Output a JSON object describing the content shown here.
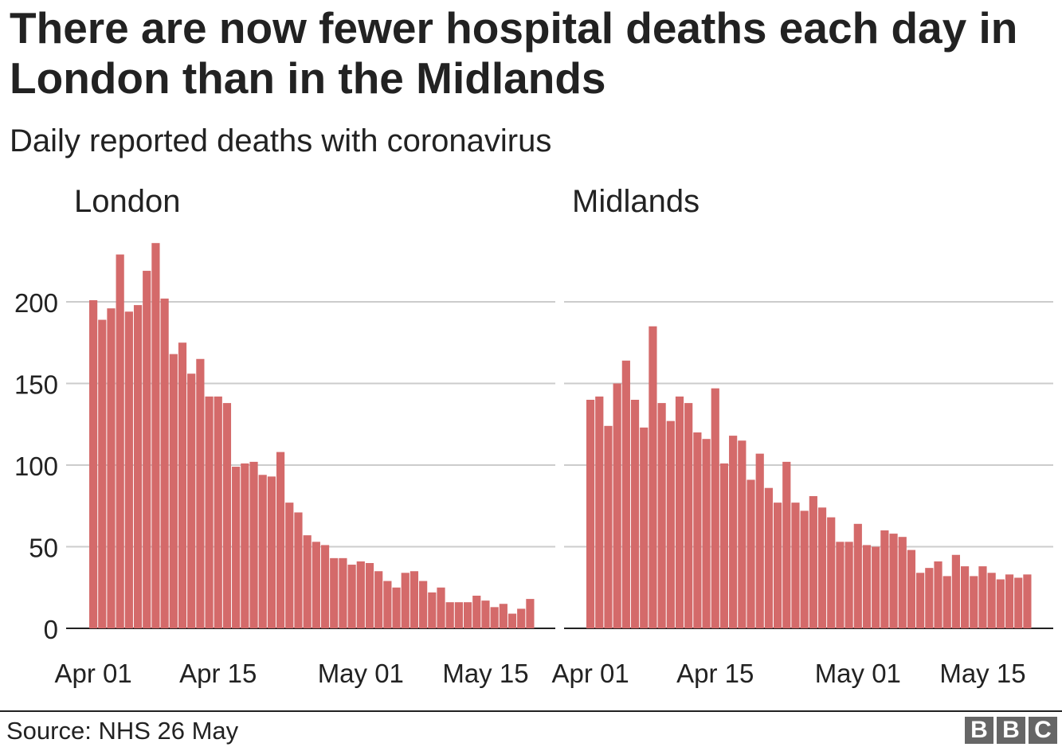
{
  "title": "There are now fewer hospital deaths each day in London than in the Midlands",
  "subtitle": "Daily reported deaths with coronavirus",
  "source": "Source: NHS 26 May",
  "logo_letters": [
    "B",
    "B",
    "C"
  ],
  "colors": {
    "bar": "#d46a6a",
    "grid": "#cccccc",
    "axis": "#222222",
    "text": "#222222",
    "logo": "#666666"
  },
  "chart_data": [
    {
      "type": "bar",
      "title": "London",
      "x_start": "Apr 01",
      "xticks": [
        {
          "label": "Apr 01",
          "index": 0
        },
        {
          "label": "Apr 15",
          "index": 14
        },
        {
          "label": "May 01",
          "index": 30
        },
        {
          "label": "May 15",
          "index": 44
        }
      ],
      "yticks": [
        "0",
        "50",
        "100",
        "150",
        "200"
      ],
      "ylim": [
        0,
        240
      ],
      "values": [
        201,
        189,
        196,
        229,
        194,
        198,
        219,
        236,
        202,
        168,
        175,
        156,
        165,
        142,
        142,
        138,
        99,
        101,
        102,
        94,
        93,
        108,
        77,
        71,
        57,
        53,
        51,
        43,
        43,
        39,
        41,
        40,
        35,
        29,
        25,
        34,
        35,
        29,
        22,
        25,
        16,
        16,
        16,
        20,
        17,
        13,
        15,
        9,
        12,
        18
      ]
    },
    {
      "type": "bar",
      "title": "Midlands",
      "x_start": "Apr 01",
      "xticks": [
        {
          "label": "Apr 01",
          "index": 0
        },
        {
          "label": "Apr 15",
          "index": 14
        },
        {
          "label": "May 01",
          "index": 30
        },
        {
          "label": "May 15",
          "index": 44
        }
      ],
      "yticks": [
        "0",
        "50",
        "100",
        "150",
        "200"
      ],
      "ylim": [
        0,
        240
      ],
      "values": [
        140,
        142,
        124,
        150,
        164,
        140,
        123,
        185,
        138,
        127,
        142,
        138,
        120,
        116,
        147,
        101,
        118,
        115,
        91,
        107,
        86,
        77,
        102,
        77,
        72,
        81,
        74,
        68,
        53,
        53,
        64,
        51,
        50,
        60,
        58,
        56,
        48,
        34,
        37,
        41,
        32,
        45,
        38,
        32,
        38,
        34,
        30,
        33,
        31,
        33
      ]
    }
  ]
}
